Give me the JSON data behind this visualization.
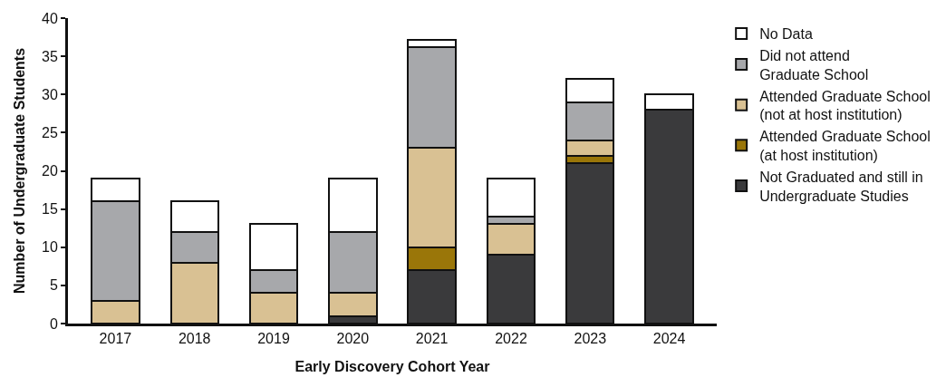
{
  "chart_data": {
    "type": "bar",
    "stacked": true,
    "xlabel": "Early Discovery Cohort Year",
    "ylabel": "Number of Undergraduate Students",
    "categories": [
      "2017",
      "2018",
      "2019",
      "2020",
      "2021",
      "2022",
      "2023",
      "2024"
    ],
    "series": [
      {
        "name": "Not Graduated and still in\nUndergraduate Studies",
        "color": "#3a3a3c",
        "values": [
          0,
          0,
          0,
          1,
          7,
          9,
          21,
          28
        ]
      },
      {
        "name": "Attended Graduate School\n(at host institution)",
        "color": "#9a7609",
        "values": [
          0,
          0,
          0,
          0,
          3,
          0,
          1,
          0
        ]
      },
      {
        "name": "Attended Graduate School\n(not at host institution)",
        "color": "#d9c193",
        "values": [
          3,
          8,
          4,
          3,
          13,
          4,
          2,
          0
        ]
      },
      {
        "name": "Did not attend\nGraduate School",
        "color": "#a7a8ab",
        "values": [
          13,
          4,
          3,
          8,
          13.2,
          1,
          5,
          0
        ]
      },
      {
        "name": "No Data",
        "color": "#ffffff",
        "values": [
          3,
          4,
          6,
          7,
          1,
          5,
          3,
          2
        ]
      }
    ],
    "ylim": [
      0,
      40
    ],
    "yticks": [
      0,
      5,
      10,
      15,
      20,
      25,
      30,
      35,
      40
    ],
    "legend": "right"
  }
}
